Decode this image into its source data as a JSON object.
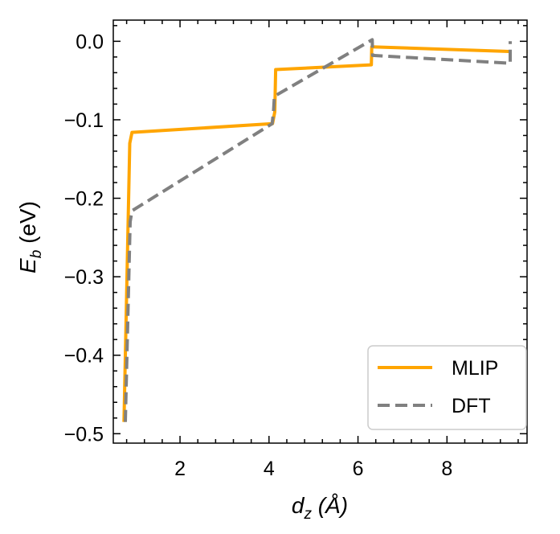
{
  "chart_data": {
    "type": "line",
    "xlabel": "d_z (Å)",
    "ylabel": "E_b (eV)",
    "xlim": [
      0.5,
      9.8
    ],
    "ylim": [
      -0.512,
      0.027
    ],
    "xticks": [
      2,
      4,
      6,
      8
    ],
    "xtick_labels": [
      "2",
      "4",
      "6",
      "8"
    ],
    "yticks": [
      0.0,
      -0.1,
      -0.2,
      -0.3,
      -0.4,
      -0.5
    ],
    "ytick_labels": [
      "0.0",
      "−0.1",
      "−0.2",
      "−0.3",
      "−0.4",
      "−0.5"
    ],
    "grid": false,
    "legend_position": "lower-right",
    "series": [
      {
        "name": "MLIP",
        "color": "#ffa500",
        "style": "solid",
        "x": [
          0.74,
          0.87,
          0.92,
          4.08,
          4.13,
          4.15,
          6.3,
          6.31,
          9.4
        ],
        "y": [
          -0.485,
          -0.13,
          -0.116,
          -0.105,
          -0.09,
          -0.036,
          -0.03,
          -0.007,
          -0.013
        ]
      },
      {
        "name": "DFT",
        "color": "#808080",
        "style": "dashed",
        "x": [
          0.77,
          0.88,
          0.92,
          4.07,
          4.1,
          4.12,
          6.32,
          6.33,
          9.42,
          9.42
        ],
        "y": [
          -0.485,
          -0.23,
          -0.216,
          -0.105,
          -0.09,
          -0.07,
          0.002,
          -0.018,
          -0.028,
          0.0
        ]
      }
    ]
  }
}
